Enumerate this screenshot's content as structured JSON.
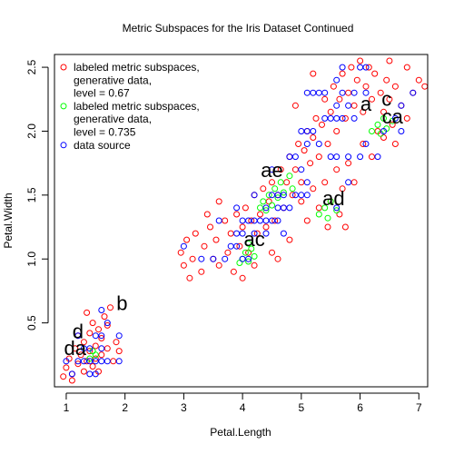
{
  "chart_data": {
    "type": "scatter",
    "title": "Metric Subspaces for the Iris Dataset Continued",
    "xlabel": "Petal.Length",
    "ylabel": "Petal.Width",
    "xlim": [
      0.8,
      7.15
    ],
    "ylim": [
      0.0,
      2.6
    ],
    "x_ticks": [
      1,
      2,
      3,
      4,
      5,
      6,
      7
    ],
    "y_ticks": [
      0.5,
      1.0,
      1.5,
      2.0,
      2.5
    ],
    "x_tick_labels": [
      "1",
      "2",
      "3",
      "4",
      "5",
      "6",
      "7"
    ],
    "y_tick_labels": [
      "0.5",
      "1.0",
      "1.5",
      "2.0",
      "2.5"
    ],
    "grid": false,
    "legend_position": "top-left",
    "legend": [
      {
        "label": [
          "labeled metric subspaces,",
          "generative data,",
          "level = 0.67"
        ],
        "color": "#ff0000"
      },
      {
        "label": [
          "labeled metric subspaces,",
          "generative data,",
          "level = 0.735"
        ],
        "color": "#00ff00"
      },
      {
        "label": [
          "data source"
        ],
        "color": "#0000ff"
      }
    ],
    "series": [
      {
        "name": "labeled metric subspaces, generative data, level = 0.67",
        "color": "#ff0000",
        "points": [
          [
            1.0,
            0.15
          ],
          [
            1.05,
            0.22
          ],
          [
            1.1,
            0.1
          ],
          [
            1.15,
            0.3
          ],
          [
            1.2,
            0.18
          ],
          [
            1.25,
            0.25
          ],
          [
            1.3,
            0.35
          ],
          [
            1.3,
            0.12
          ],
          [
            1.35,
            0.2
          ],
          [
            1.4,
            0.28
          ],
          [
            1.4,
            0.42
          ],
          [
            1.45,
            0.16
          ],
          [
            1.5,
            0.32
          ],
          [
            1.5,
            0.22
          ],
          [
            1.55,
            0.45
          ],
          [
            1.6,
            0.25
          ],
          [
            1.6,
            0.38
          ],
          [
            1.65,
            0.55
          ],
          [
            1.7,
            0.3
          ],
          [
            1.75,
            0.62
          ],
          [
            1.8,
            0.2
          ],
          [
            1.85,
            0.35
          ],
          [
            1.2,
            0.4
          ],
          [
            1.1,
            0.05
          ],
          [
            0.95,
            0.08
          ],
          [
            1.45,
            0.5
          ],
          [
            1.35,
            0.58
          ],
          [
            1.55,
            0.12
          ],
          [
            1.7,
            0.48
          ],
          [
            1.9,
            0.28
          ],
          [
            2.95,
            1.05
          ],
          [
            3.0,
            0.95
          ],
          [
            3.05,
            1.15
          ],
          [
            3.15,
            1.0
          ],
          [
            3.2,
            1.2
          ],
          [
            3.3,
            0.9
          ],
          [
            3.35,
            1.1
          ],
          [
            3.45,
            1.25
          ],
          [
            3.5,
            1.0
          ],
          [
            3.55,
            1.15
          ],
          [
            3.6,
            0.95
          ],
          [
            3.7,
            1.3
          ],
          [
            3.75,
            1.05
          ],
          [
            3.8,
            1.2
          ],
          [
            3.85,
            0.9
          ],
          [
            3.9,
            1.35
          ],
          [
            3.95,
            1.1
          ],
          [
            4.0,
            1.25
          ],
          [
            4.05,
            1.4
          ],
          [
            4.1,
            1.05
          ],
          [
            4.15,
            1.3
          ],
          [
            4.2,
            1.5
          ],
          [
            4.25,
            1.2
          ],
          [
            4.3,
            1.35
          ],
          [
            4.35,
            1.55
          ],
          [
            4.4,
            1.25
          ],
          [
            4.45,
            1.45
          ],
          [
            4.5,
            1.6
          ],
          [
            4.55,
            1.3
          ],
          [
            4.6,
            1.5
          ],
          [
            4.65,
            1.7
          ],
          [
            4.7,
            1.4
          ],
          [
            4.75,
            1.6
          ],
          [
            4.8,
            1.8
          ],
          [
            4.85,
            1.5
          ],
          [
            4.9,
            1.7
          ],
          [
            4.95,
            1.9
          ],
          [
            5.0,
            1.6
          ],
          [
            5.05,
            1.85
          ],
          [
            5.1,
            2.0
          ],
          [
            5.15,
            1.75
          ],
          [
            5.2,
            1.95
          ],
          [
            5.25,
            2.1
          ],
          [
            5.3,
            1.8
          ],
          [
            5.35,
            2.05
          ],
          [
            5.4,
            2.25
          ],
          [
            5.45,
            1.9
          ],
          [
            5.5,
            2.15
          ],
          [
            5.55,
            2.35
          ],
          [
            5.6,
            2.0
          ],
          [
            5.65,
            2.25
          ],
          [
            5.7,
            2.45
          ],
          [
            5.75,
            2.1
          ],
          [
            5.8,
            2.3
          ],
          [
            5.85,
            2.5
          ],
          [
            5.9,
            2.2
          ],
          [
            5.95,
            2.4
          ],
          [
            6.0,
            2.55
          ],
          [
            6.05,
            2.15
          ],
          [
            6.1,
            2.35
          ],
          [
            6.15,
            2.5
          ],
          [
            6.2,
            2.25
          ],
          [
            6.25,
            2.45
          ],
          [
            6.3,
            2.0
          ],
          [
            6.35,
            2.3
          ],
          [
            6.4,
            2.15
          ],
          [
            6.45,
            2.4
          ],
          [
            6.5,
            2.25
          ],
          [
            6.55,
            2.05
          ],
          [
            6.6,
            2.35
          ],
          [
            6.7,
            2.2
          ],
          [
            6.8,
            2.1
          ],
          [
            6.9,
            2.3
          ],
          [
            7.0,
            2.4
          ],
          [
            7.1,
            2.35
          ],
          [
            5.0,
            1.45
          ],
          [
            5.1,
            1.3
          ],
          [
            5.2,
            1.55
          ],
          [
            5.3,
            1.4
          ],
          [
            5.4,
            1.6
          ],
          [
            5.5,
            1.45
          ],
          [
            5.6,
            1.7
          ],
          [
            5.7,
            1.55
          ],
          [
            5.8,
            1.75
          ],
          [
            5.9,
            1.6
          ],
          [
            4.8,
            1.15
          ],
          [
            4.6,
            1.0
          ],
          [
            4.5,
            1.05
          ],
          [
            5.65,
            1.35
          ],
          [
            5.75,
            1.25
          ],
          [
            5.45,
            1.25
          ],
          [
            6.05,
            1.9
          ],
          [
            6.2,
            1.8
          ],
          [
            6.4,
            1.95
          ],
          [
            6.6,
            1.9
          ],
          [
            4.2,
            0.95
          ],
          [
            3.6,
            1.45
          ],
          [
            3.4,
            1.35
          ],
          [
            4.0,
            0.85
          ],
          [
            3.1,
            0.85
          ],
          [
            6.8,
            2.5
          ],
          [
            6.5,
            2.55
          ],
          [
            5.2,
            2.45
          ],
          [
            4.9,
            2.2
          ]
        ]
      },
      {
        "name": "labeled metric subspaces, generative data, level = 0.735",
        "color": "#00ff00",
        "points": [
          [
            4.0,
            1.0
          ],
          [
            4.05,
            1.05
          ],
          [
            4.1,
            0.98
          ],
          [
            4.15,
            1.08
          ],
          [
            4.2,
            1.02
          ],
          [
            3.95,
            0.97
          ],
          [
            4.1,
            1.12
          ],
          [
            4.3,
            1.4
          ],
          [
            4.35,
            1.45
          ],
          [
            4.4,
            1.38
          ],
          [
            4.45,
            1.5
          ],
          [
            4.5,
            1.42
          ],
          [
            4.55,
            1.55
          ],
          [
            4.6,
            1.48
          ],
          [
            4.65,
            1.6
          ],
          [
            4.7,
            1.52
          ],
          [
            4.8,
            1.65
          ],
          [
            4.85,
            1.55
          ],
          [
            5.3,
            1.35
          ],
          [
            5.4,
            1.4
          ],
          [
            5.45,
            1.32
          ],
          [
            5.5,
            1.45
          ],
          [
            5.6,
            1.38
          ],
          [
            6.2,
            2.0
          ],
          [
            6.3,
            2.05
          ],
          [
            6.35,
            1.98
          ],
          [
            6.4,
            2.1
          ],
          [
            6.45,
            2.02
          ],
          [
            6.55,
            2.08
          ],
          [
            1.4,
            0.22
          ],
          [
            1.45,
            0.28
          ],
          [
            1.5,
            0.25
          ]
        ]
      },
      {
        "name": "data source",
        "color": "#0000ff",
        "points": [
          [
            1.0,
            0.2
          ],
          [
            1.2,
            0.2
          ],
          [
            1.3,
            0.2
          ],
          [
            1.3,
            0.3
          ],
          [
            1.4,
            0.2
          ],
          [
            1.4,
            0.3
          ],
          [
            1.4,
            0.1
          ],
          [
            1.5,
            0.2
          ],
          [
            1.5,
            0.1
          ],
          [
            1.5,
            0.4
          ],
          [
            1.6,
            0.2
          ],
          [
            1.6,
            0.4
          ],
          [
            1.6,
            0.6
          ],
          [
            1.7,
            0.2
          ],
          [
            1.7,
            0.5
          ],
          [
            1.9,
            0.2
          ],
          [
            1.9,
            0.4
          ],
          [
            1.1,
            0.1
          ],
          [
            1.2,
            0.4
          ],
          [
            1.6,
            0.3
          ],
          [
            3.0,
            1.1
          ],
          [
            3.3,
            1.0
          ],
          [
            3.5,
            1.0
          ],
          [
            3.6,
            1.3
          ],
          [
            3.7,
            1.0
          ],
          [
            3.8,
            1.1
          ],
          [
            3.9,
            1.1
          ],
          [
            3.9,
            1.2
          ],
          [
            3.9,
            1.4
          ],
          [
            4.0,
            1.0
          ],
          [
            4.0,
            1.2
          ],
          [
            4.0,
            1.3
          ],
          [
            4.1,
            1.0
          ],
          [
            4.1,
            1.3
          ],
          [
            4.2,
            1.2
          ],
          [
            4.2,
            1.3
          ],
          [
            4.2,
            1.5
          ],
          [
            4.3,
            1.3
          ],
          [
            4.4,
            1.2
          ],
          [
            4.4,
            1.3
          ],
          [
            4.4,
            1.4
          ],
          [
            4.5,
            1.3
          ],
          [
            4.5,
            1.5
          ],
          [
            4.5,
            1.7
          ],
          [
            4.6,
            1.3
          ],
          [
            4.6,
            1.4
          ],
          [
            4.6,
            1.5
          ],
          [
            4.7,
            1.2
          ],
          [
            4.7,
            1.4
          ],
          [
            4.7,
            1.5
          ],
          [
            4.8,
            1.4
          ],
          [
            4.8,
            1.8
          ],
          [
            4.9,
            1.5
          ],
          [
            4.9,
            1.8
          ],
          [
            5.0,
            1.5
          ],
          [
            5.0,
            1.7
          ],
          [
            5.0,
            2.0
          ],
          [
            5.1,
            1.5
          ],
          [
            5.1,
            1.6
          ],
          [
            5.1,
            1.9
          ],
          [
            5.1,
            2.0
          ],
          [
            5.1,
            2.3
          ],
          [
            5.2,
            2.0
          ],
          [
            5.2,
            2.3
          ],
          [
            5.3,
            1.9
          ],
          [
            5.3,
            2.3
          ],
          [
            5.4,
            2.1
          ],
          [
            5.4,
            2.3
          ],
          [
            5.5,
            1.8
          ],
          [
            5.5,
            2.1
          ],
          [
            5.6,
            1.4
          ],
          [
            5.6,
            1.8
          ],
          [
            5.6,
            2.1
          ],
          [
            5.6,
            2.2
          ],
          [
            5.6,
            2.4
          ],
          [
            5.7,
            2.1
          ],
          [
            5.7,
            2.3
          ],
          [
            5.7,
            2.5
          ],
          [
            5.8,
            1.6
          ],
          [
            5.8,
            1.8
          ],
          [
            5.8,
            2.2
          ],
          [
            5.9,
            2.1
          ],
          [
            5.9,
            2.3
          ],
          [
            6.0,
            1.8
          ],
          [
            6.0,
            2.5
          ],
          [
            6.1,
            1.9
          ],
          [
            6.1,
            2.3
          ],
          [
            6.1,
            2.5
          ],
          [
            6.3,
            1.8
          ],
          [
            6.4,
            2.0
          ],
          [
            6.6,
            2.1
          ],
          [
            6.7,
            2.0
          ],
          [
            6.7,
            2.2
          ],
          [
            6.9,
            2.3
          ]
        ]
      }
    ],
    "annotations": [
      {
        "text": "b",
        "x": 1.95,
        "y": 0.6
      },
      {
        "text": "d",
        "x": 1.2,
        "y": 0.38
      },
      {
        "text": "da",
        "x": 1.15,
        "y": 0.25
      },
      {
        "text": "ac",
        "x": 4.2,
        "y": 1.1
      },
      {
        "text": "ae",
        "x": 4.5,
        "y": 1.64
      },
      {
        "text": "ad",
        "x": 5.55,
        "y": 1.42
      },
      {
        "text": "a",
        "x": 6.1,
        "y": 2.16
      },
      {
        "text": "c",
        "x": 6.45,
        "y": 2.2
      },
      {
        "text": "ca",
        "x": 6.55,
        "y": 2.06
      }
    ]
  }
}
